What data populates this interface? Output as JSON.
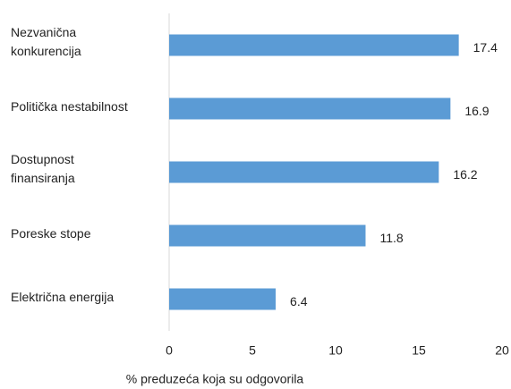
{
  "chart_data": {
    "type": "bar",
    "orientation": "horizontal",
    "categories": [
      "Nezvanična\nkonkurencija",
      "Politička nestabilnost",
      "Dostupnost\nfinansiranja",
      "Poreske stope",
      "Električna energija"
    ],
    "values": [
      17.4,
      16.9,
      16.2,
      11.8,
      6.4
    ],
    "color": "#5b9bd5",
    "xlabel": "% preduzeća koja su odgovorila",
    "xlim": [
      0,
      20
    ],
    "xticks": [
      0,
      5,
      10,
      15,
      20
    ],
    "grid": false
  }
}
